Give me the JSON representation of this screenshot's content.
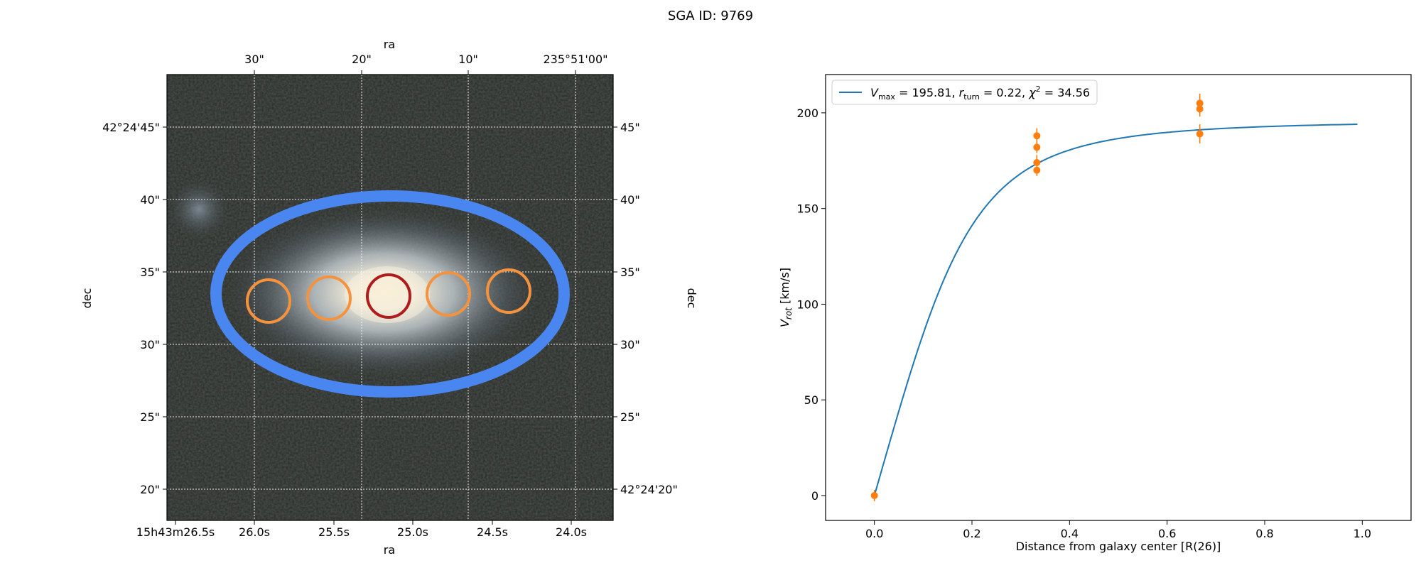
{
  "title": "SGA ID: 9769",
  "image_panel": {
    "top_label": "ra",
    "bottom_label": "ra",
    "left_label": "dec",
    "right_label": "dec",
    "top_ticks": [
      "30\"",
      "20\"",
      "10\"",
      "235°51'00\""
    ],
    "bottom_ticks": [
      "15h43m26.5s",
      "26.0s",
      "25.5s",
      "25.0s",
      "24.5s",
      "24.0s"
    ],
    "left_ticks": [
      "42°24'45\"",
      "40\"",
      "35\"",
      "30\"",
      "25\"",
      "20\""
    ],
    "right_ticks": [
      "45\"",
      "40\"",
      "35\"",
      "30\"",
      "25\"",
      "42°24'20\""
    ],
    "colors": {
      "ellipse": "#4a86f0",
      "aperture": "#f5923e",
      "center_aperture": "#b01c1c",
      "grid": "#ffffff"
    }
  },
  "chart_data": {
    "type": "scatter",
    "xlabel": "Distance from galaxy center [R(26)]",
    "ylabel": "V_rot [km/s]",
    "xlim": [
      -0.1,
      1.1
    ],
    "ylim": [
      -13,
      220
    ],
    "xticks": [
      0.0,
      0.2,
      0.4,
      0.6,
      0.8,
      1.0
    ],
    "xtick_labels": [
      "0.0",
      "0.2",
      "0.4",
      "0.6",
      "0.8",
      "1.0"
    ],
    "yticks": [
      0,
      50,
      100,
      150,
      200
    ],
    "ytick_labels": [
      "0",
      "50",
      "100",
      "150",
      "200"
    ],
    "legend": {
      "position": "top-left",
      "label": "V_max = 195.81, r_turn = 0.22, χ² = 34.56"
    },
    "fit": {
      "name": "V_max = 195.81, r_turn = 0.22, χ² = 34.56",
      "color": "#1f77b4",
      "vmax": 195.81,
      "rturn": 0.22,
      "alpha": 2.5,
      "x_range": [
        0.0,
        0.99
      ]
    },
    "points": {
      "color": "#ff7f0e",
      "data": [
        {
          "x": 0.0,
          "y": 0,
          "err": 3
        },
        {
          "x": 0.333,
          "y": 188,
          "err": 4
        },
        {
          "x": 0.333,
          "y": 182,
          "err": 3
        },
        {
          "x": 0.333,
          "y": 174,
          "err": 4
        },
        {
          "x": 0.333,
          "y": 170,
          "err": 3
        },
        {
          "x": 0.667,
          "y": 205,
          "err": 5
        },
        {
          "x": 0.667,
          "y": 202,
          "err": 4
        },
        {
          "x": 0.667,
          "y": 189,
          "err": 5
        }
      ]
    }
  }
}
